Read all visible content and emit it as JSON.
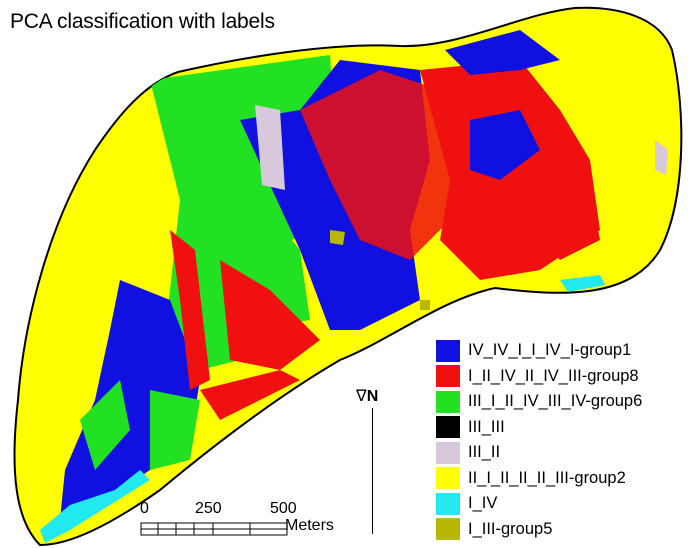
{
  "title": "PCA classification with labels",
  "legend": [
    {
      "label": "IV_IV_I_I_IV_I-group1",
      "color": "#1010e0"
    },
    {
      "label": "I_II_IV_II_IV_III-group8",
      "color": "#f01010"
    },
    {
      "label": "III_I_II_IV_III_IV-group6",
      "color": "#22e022"
    },
    {
      "label": "III_III",
      "color": "#000000"
    },
    {
      "label": "III_II",
      "color": "#d8c8dc"
    },
    {
      "label": "II_I_II_II_II_III-group2",
      "color": "#ffff00"
    },
    {
      "label": "I_IV",
      "color": "#22e8f0"
    },
    {
      "label": "I_III-group5",
      "color": "#b8b800"
    }
  ],
  "north": {
    "arrow": "∇",
    "letter": "N"
  },
  "scale": {
    "ticks": [
      "0",
      "250",
      "500"
    ],
    "unit": "Meters"
  }
}
